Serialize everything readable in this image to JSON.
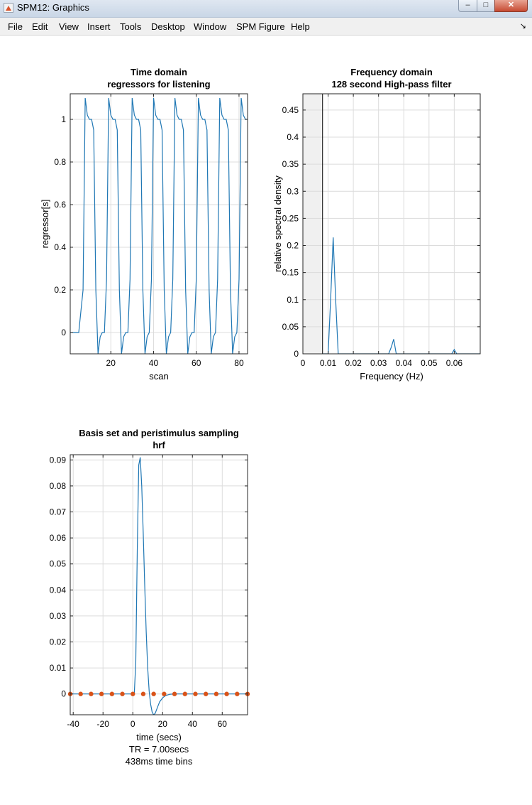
{
  "window": {
    "title": "SPM12: Graphics",
    "minimize_glyph": "–",
    "maximize_glyph": "□",
    "close_glyph": "✕"
  },
  "menubar": {
    "items": [
      "File",
      "Edit",
      "View",
      "Insert",
      "Tools",
      "Desktop",
      "Window",
      "SPM Figure",
      "Help"
    ],
    "arrow_glyph": "↘"
  },
  "icons": {
    "app": "matlab-icon",
    "dock": "dock-arrow-icon"
  },
  "colors": {
    "line": "#1f77b4",
    "marker": "#d95319",
    "grid": "#dcdcdc",
    "shade": "#f0f0f0"
  },
  "chart_data": [
    {
      "type": "line",
      "title": "Time domain",
      "subtitle": "regressors for listening",
      "xlabel": "scan",
      "ylabel": "regressor[s]",
      "xlim": [
        1,
        84
      ],
      "ylim": [
        -0.1,
        1.12
      ],
      "xticks": [
        20,
        40,
        60,
        80
      ],
      "yticks": [
        0,
        0.2,
        0.4,
        0.6,
        0.8,
        1
      ],
      "ytick_labels": [
        "0",
        "0.2",
        "0.4",
        "0.6",
        "0.8",
        "1"
      ],
      "grid": true,
      "series": [
        {
          "x": [
            1,
            3,
            5,
            7,
            8,
            9,
            10,
            11,
            12,
            13,
            14,
            15,
            16,
            17,
            18,
            19,
            20,
            21,
            22,
            23,
            24,
            25,
            26,
            27,
            28,
            29,
            30,
            31,
            32,
            33,
            34,
            35,
            36,
            37,
            38,
            39,
            40,
            41,
            42,
            43,
            44,
            45,
            46,
            47,
            48,
            49,
            50,
            51,
            52,
            53,
            54,
            55,
            56,
            57,
            58,
            59,
            60,
            61,
            62,
            63,
            64,
            65,
            66,
            67,
            68,
            69,
            70,
            71,
            72,
            73,
            74,
            75,
            76,
            77,
            78,
            79,
            80,
            81,
            82,
            83,
            84
          ],
          "y": [
            0,
            0,
            0,
            0.2,
            1.1,
            1.02,
            1.0,
            1.0,
            0.95,
            0.2,
            -0.1,
            -0.02,
            0,
            0,
            0.25,
            1.1,
            1.02,
            1.0,
            1.0,
            0.95,
            0.2,
            -0.1,
            -0.02,
            0,
            0,
            0.25,
            1.1,
            1.02,
            1.0,
            1.0,
            0.95,
            0.2,
            -0.1,
            -0.02,
            0,
            0.25,
            1.1,
            1.02,
            1.0,
            1.0,
            0.95,
            0.2,
            -0.1,
            -0.02,
            0,
            0.25,
            1.1,
            1.02,
            1.0,
            1.0,
            0.95,
            0.2,
            -0.1,
            -0.02,
            0,
            0,
            0.25,
            1.1,
            1.02,
            1.0,
            1.0,
            0.95,
            0.2,
            -0.1,
            -0.02,
            0,
            0.25,
            1.1,
            1.02,
            1.0,
            1.0,
            0.95,
            0.2,
            -0.1,
            -0.02,
            0,
            0.25,
            1.1,
            1.02,
            1.0,
            1.0
          ]
        }
      ]
    },
    {
      "type": "line",
      "title": "Frequency domain",
      "subtitle": "128 second High-pass filter",
      "xlabel": "Frequency (Hz)",
      "ylabel": "relative spectral density",
      "xlim": [
        0,
        0.0703
      ],
      "ylim": [
        0,
        0.48
      ],
      "xticks": [
        0,
        0.01,
        0.02,
        0.03,
        0.04,
        0.05,
        0.06
      ],
      "xtick_labels": [
        "0",
        "0.01",
        "0.02",
        "0.03",
        "0.04",
        "0.05",
        "0.06"
      ],
      "yticks": [
        0,
        0.05,
        0.1,
        0.15,
        0.2,
        0.25,
        0.3,
        0.35,
        0.4,
        0.45
      ],
      "ytick_labels": [
        "0",
        "0.05",
        "0.1",
        "0.15",
        "0.2",
        "0.25",
        "0.3",
        "0.35",
        "0.4",
        "0.45"
      ],
      "cutoff_hz": 0.0078,
      "grid": true,
      "series": [
        {
          "x": [
            0.0078,
            0.01,
            0.011,
            0.012,
            0.013,
            0.014,
            0.034,
            0.035,
            0.036,
            0.037,
            0.059,
            0.06,
            0.061,
            0.0703
          ],
          "y": [
            0,
            0,
            0.1,
            0.215,
            0.1,
            0,
            0,
            0.012,
            0.027,
            0,
            0,
            0.008,
            0,
            0
          ]
        }
      ]
    },
    {
      "type": "line",
      "title": "Basis set and peristimulus sampling",
      "subtitle": "hrf",
      "xlabel": "time (secs)",
      "notes": [
        "TR = 7.00secs",
        "438ms time bins"
      ],
      "xlim": [
        -42,
        77
      ],
      "ylim": [
        -0.008,
        0.092
      ],
      "xticks": [
        -40,
        -20,
        0,
        20,
        40,
        60
      ],
      "xtick_labels": [
        "-40",
        "-20",
        "0",
        "20",
        "40",
        "60"
      ],
      "yticks": [
        0,
        0.01,
        0.02,
        0.03,
        0.04,
        0.05,
        0.06,
        0.07,
        0.08,
        0.09
      ],
      "ytick_labels": [
        "0",
        "0.01",
        "0.02",
        "0.03",
        "0.04",
        "0.05",
        "0.06",
        "0.07",
        "0.08",
        "0.09"
      ],
      "grid": true,
      "series": [
        {
          "x": [
            -42,
            1,
            2,
            3,
            4,
            5,
            6,
            7,
            8,
            9,
            10,
            11,
            12,
            13,
            14,
            15,
            16,
            17,
            18,
            20,
            22,
            25,
            28,
            32,
            77
          ],
          "y": [
            0,
            0,
            0.012,
            0.055,
            0.088,
            0.091,
            0.08,
            0.062,
            0.042,
            0.024,
            0.01,
            0.001,
            -0.004,
            -0.007,
            -0.008,
            -0.0075,
            -0.006,
            -0.0045,
            -0.003,
            -0.0015,
            -0.0006,
            -0.0001,
            0,
            0,
            0
          ]
        },
        {
          "marker": "circle",
          "x": [
            -42,
            -35,
            -28,
            -21,
            -14,
            -7,
            0,
            7,
            14,
            21,
            28,
            35,
            42,
            49,
            56,
            63,
            70,
            77
          ],
          "y": [
            0,
            0,
            0,
            0,
            0,
            0,
            0,
            0,
            0,
            0,
            0,
            0,
            0,
            0,
            0,
            0,
            0,
            0
          ]
        }
      ]
    }
  ]
}
